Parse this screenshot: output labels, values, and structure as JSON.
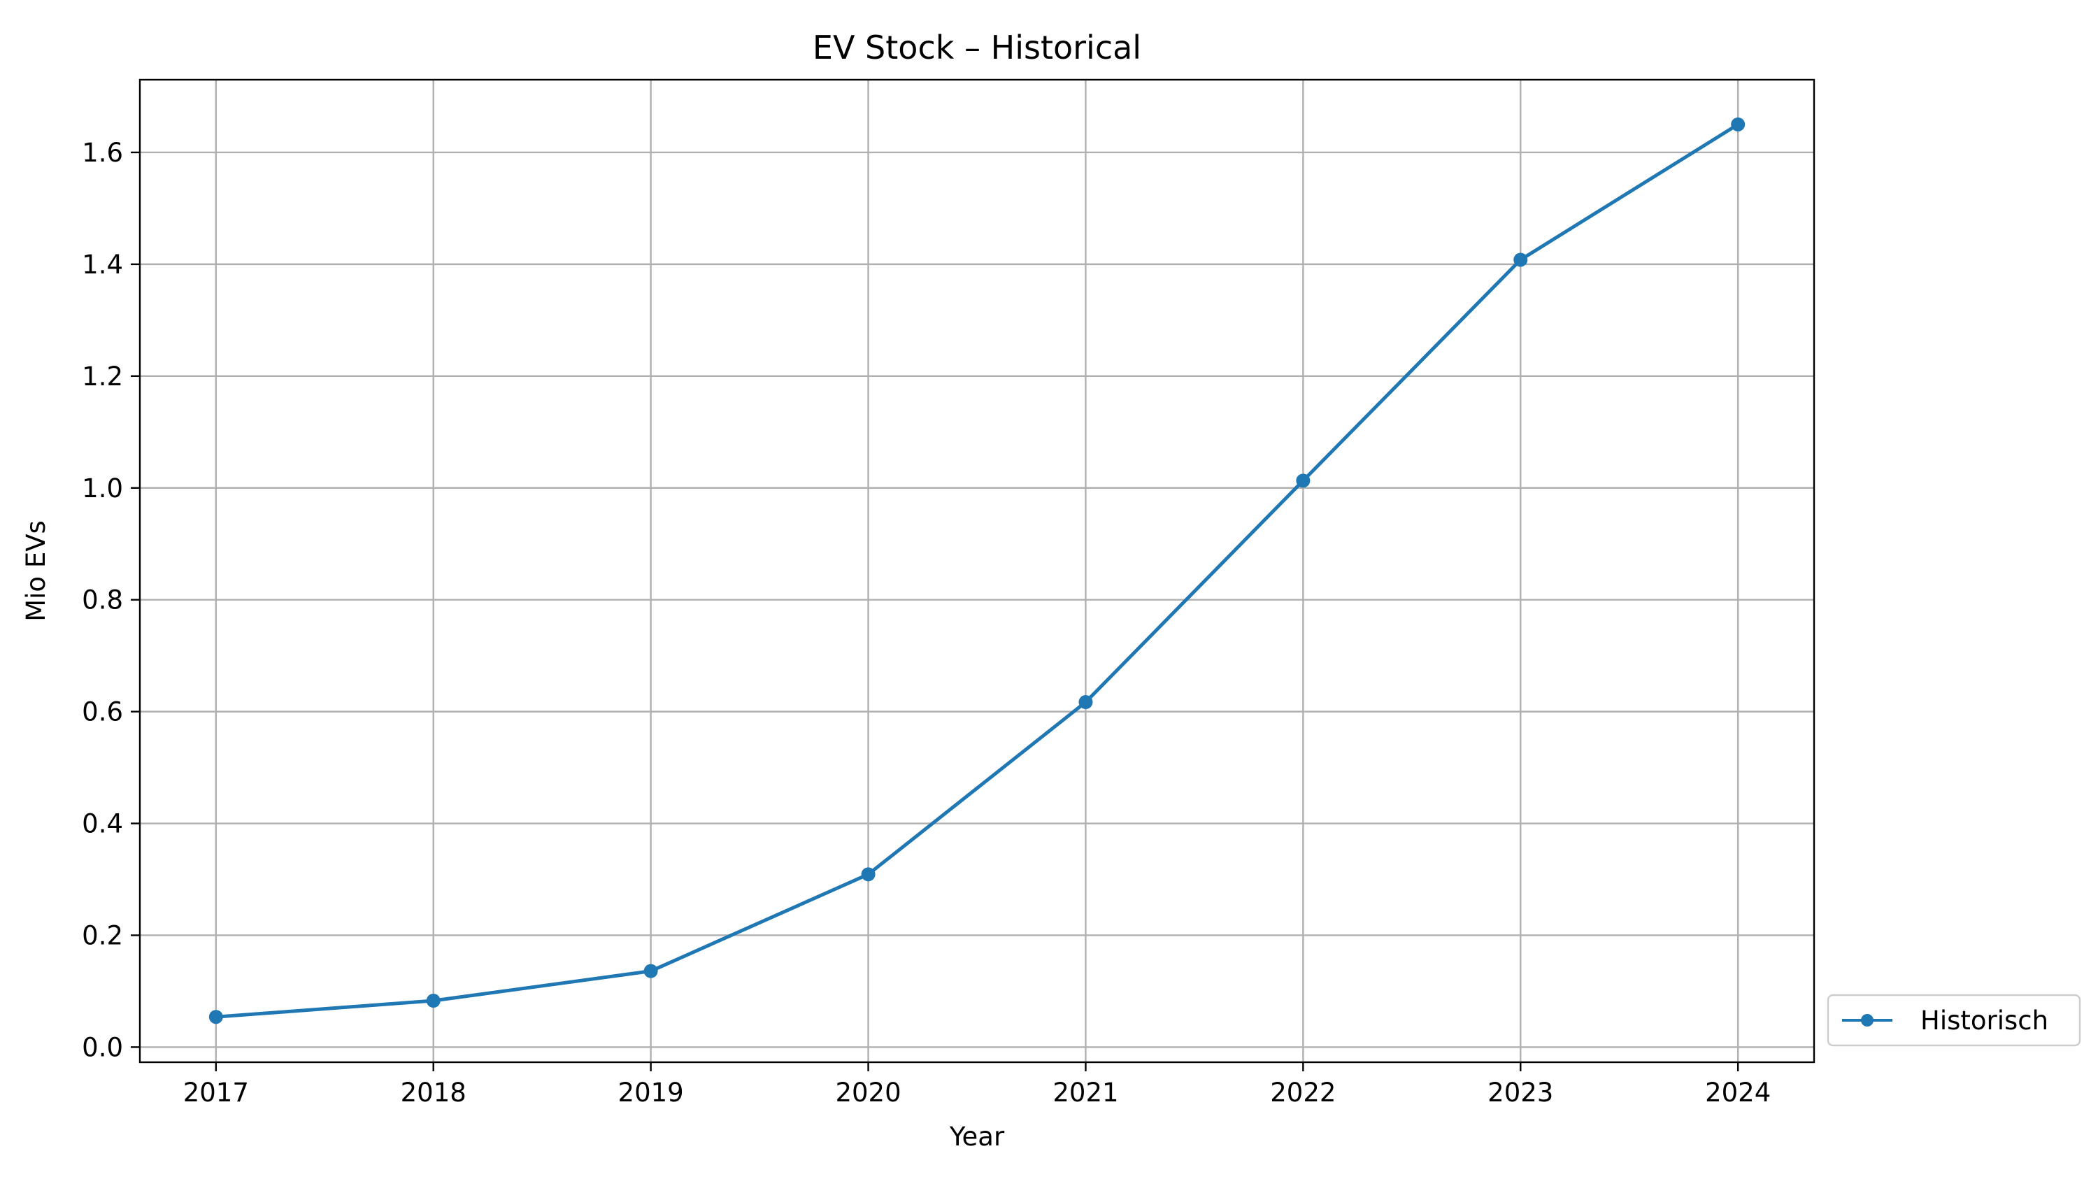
{
  "chart_data": {
    "type": "line",
    "title": "EV Stock – Historical",
    "xlabel": "Year",
    "ylabel": "Mio EVs",
    "x": [
      2017,
      2018,
      2019,
      2020,
      2021,
      2022,
      2023,
      2024
    ],
    "x_tick_labels": [
      "2017",
      "2018",
      "2019",
      "2020",
      "2021",
      "2022",
      "2023",
      "2024"
    ],
    "y_ticks": [
      0.0,
      0.2,
      0.4,
      0.6,
      0.8,
      1.0,
      1.2,
      1.4,
      1.6
    ],
    "y_tick_labels": [
      "0.0",
      "0.2",
      "0.4",
      "0.6",
      "0.8",
      "1.0",
      "1.2",
      "1.4",
      "1.6"
    ],
    "xlim": [
      2016.65,
      2024.35
    ],
    "ylim": [
      -0.027,
      1.73
    ],
    "grid": true,
    "legend_position": "outside-bottom-right",
    "series": [
      {
        "name": "Historisch",
        "color": "#1f77b4",
        "marker": "circle",
        "values": [
          0.054,
          0.083,
          0.136,
          0.309,
          0.617,
          1.013,
          1.408,
          1.65
        ]
      }
    ]
  }
}
